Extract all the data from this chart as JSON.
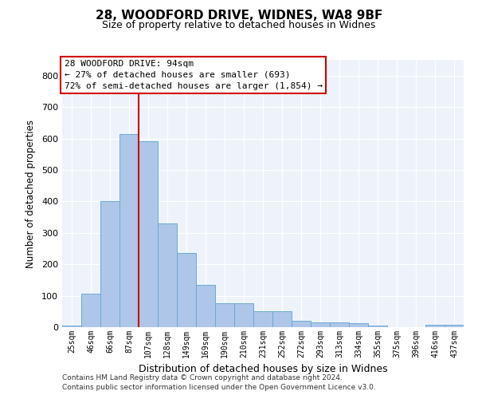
{
  "title1": "28, WOODFORD DRIVE, WIDNES, WA8 9BF",
  "title2": "Size of property relative to detached houses in Widnes",
  "xlabel": "Distribution of detached houses by size in Widnes",
  "ylabel": "Number of detached properties",
  "categories": [
    "25sqm",
    "46sqm",
    "66sqm",
    "87sqm",
    "107sqm",
    "128sqm",
    "149sqm",
    "169sqm",
    "190sqm",
    "210sqm",
    "231sqm",
    "252sqm",
    "272sqm",
    "293sqm",
    "313sqm",
    "334sqm",
    "355sqm",
    "375sqm",
    "396sqm",
    "416sqm",
    "437sqm"
  ],
  "values": [
    5,
    107,
    400,
    613,
    590,
    330,
    235,
    135,
    75,
    75,
    50,
    50,
    20,
    15,
    15,
    12,
    5,
    0,
    0,
    8,
    8
  ],
  "bar_color": "#aec6e8",
  "bar_edge_color": "#6aaad4",
  "bg_color": "#eef3fb",
  "grid_color": "#ffffff",
  "vline_color": "#cc0000",
  "annotation_text": "28 WOODFORD DRIVE: 94sqm\n← 27% of detached houses are smaller (693)\n72% of semi-detached houses are larger (1,854) →",
  "annotation_box_color": "#ffffff",
  "annotation_box_edge": "#cc0000",
  "footer1": "Contains HM Land Registry data © Crown copyright and database right 2024.",
  "footer2": "Contains public sector information licensed under the Open Government Licence v3.0.",
  "ylim": [
    0,
    850
  ],
  "yticks": [
    0,
    100,
    200,
    300,
    400,
    500,
    600,
    700,
    800
  ]
}
